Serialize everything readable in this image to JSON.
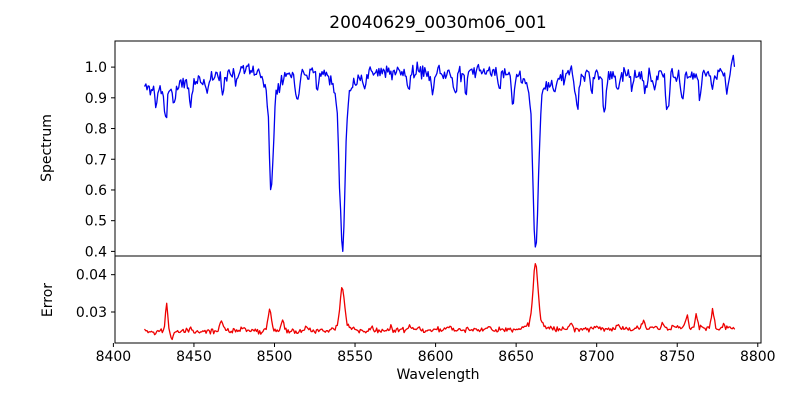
{
  "chart_data": {
    "type": "line",
    "title": "20040629_0030m06_001",
    "xlabel": "Wavelength",
    "grid": false,
    "legend": "none",
    "background_color": "#ffffff",
    "axis_color": "#000000",
    "x_range": [
      8401,
      8802
    ],
    "x_ticks": [
      8400,
      8450,
      8500,
      8550,
      8600,
      8650,
      8700,
      8750,
      8800
    ],
    "data_x_range": [
      8419.5,
      8785.5
    ],
    "n_points": 540,
    "noise_seed": 11,
    "panels": [
      {
        "name": "spectrum",
        "ylabel": "Spectrum",
        "y_range": [
          0.385,
          1.085
        ],
        "y_ticks": [
          0.4,
          0.5,
          0.6,
          0.7,
          0.8,
          0.9,
          1.0
        ],
        "y_tick_decimals": 1,
        "line_color": "#0000ee",
        "noise_amp": 0.012,
        "baseline_points": [
          [
            8419,
            0.935
          ],
          [
            8428,
            0.925
          ],
          [
            8440,
            0.94
          ],
          [
            8452,
            0.955
          ],
          [
            8465,
            0.975
          ],
          [
            8478,
            0.995
          ],
          [
            8492,
            0.985
          ],
          [
            8505,
            0.975
          ],
          [
            8520,
            0.985
          ],
          [
            8535,
            0.99
          ],
          [
            8550,
            0.98
          ],
          [
            8562,
            0.99
          ],
          [
            8575,
            0.98
          ],
          [
            8590,
            0.985
          ],
          [
            8605,
            0.98
          ],
          [
            8625,
            0.985
          ],
          [
            8645,
            0.982
          ],
          [
            8660,
            0.978
          ],
          [
            8672,
            0.97
          ],
          [
            8690,
            0.975
          ],
          [
            8705,
            0.975
          ],
          [
            8720,
            0.982
          ],
          [
            8734,
            0.975
          ],
          [
            8748,
            0.97
          ],
          [
            8760,
            0.975
          ],
          [
            8775,
            0.985
          ],
          [
            8785,
            0.99
          ]
        ],
        "features": [
          [
            8498.0,
            -0.33,
            1.2
          ],
          [
            8498.0,
            -0.055,
            4.0
          ],
          [
            8542.1,
            -0.5,
            1.6
          ],
          [
            8542.1,
            -0.075,
            5.5
          ],
          [
            8662.1,
            -0.49,
            1.6
          ],
          [
            8662.1,
            -0.07,
            5.5
          ],
          [
            8426.5,
            -0.05,
            0.7
          ],
          [
            8432.5,
            -0.105,
            0.8
          ],
          [
            8437.5,
            -0.07,
            0.7
          ],
          [
            8448,
            -0.07,
            0.9
          ],
          [
            8458,
            -0.045,
            0.8
          ],
          [
            8468,
            -0.075,
            0.9
          ],
          [
            8476,
            -0.05,
            0.7
          ],
          [
            8514,
            -0.095,
            1.0
          ],
          [
            8527,
            -0.055,
            0.8
          ],
          [
            8556,
            -0.06,
            0.9
          ],
          [
            8583,
            -0.055,
            0.9
          ],
          [
            8598,
            -0.05,
            0.8
          ],
          [
            8612,
            -0.08,
            1.0
          ],
          [
            8619,
            -0.07,
            0.9
          ],
          [
            8640,
            -0.05,
            0.8
          ],
          [
            8648,
            -0.08,
            0.9
          ],
          [
            8674,
            -0.055,
            0.9
          ],
          [
            8688,
            -0.1,
            1.1
          ],
          [
            8697,
            -0.05,
            0.8
          ],
          [
            8705,
            -0.115,
            1.0
          ],
          [
            8713,
            -0.06,
            0.9
          ],
          [
            8722,
            -0.055,
            0.8
          ],
          [
            8730,
            -0.07,
            0.9
          ],
          [
            8736,
            -0.05,
            0.8
          ],
          [
            8744,
            -0.11,
            1.0
          ],
          [
            8753,
            -0.085,
            0.9
          ],
          [
            8764,
            -0.075,
            0.9
          ],
          [
            8772,
            -0.05,
            0.8
          ],
          [
            8781,
            -0.06,
            0.9
          ],
          [
            8785,
            0.045,
            0.5
          ]
        ]
      },
      {
        "name": "error",
        "ylabel": "Error",
        "y_range": [
          0.0217,
          0.045
        ],
        "y_ticks": [
          0.03,
          0.04
        ],
        "y_tick_decimals": 2,
        "line_color": "#ee0000",
        "noise_amp": 0.00035,
        "baseline_points": [
          [
            8419,
            0.0247
          ],
          [
            8450,
            0.0248
          ],
          [
            8485,
            0.025
          ],
          [
            8520,
            0.0248
          ],
          [
            8555,
            0.025
          ],
          [
            8590,
            0.0252
          ],
          [
            8625,
            0.0252
          ],
          [
            8660,
            0.0253
          ],
          [
            8695,
            0.0255
          ],
          [
            8730,
            0.0256
          ],
          [
            8765,
            0.0258
          ],
          [
            8785,
            0.0256
          ]
        ],
        "features": [
          [
            8433,
            0.0075,
            0.7
          ],
          [
            8436.5,
            -0.0014,
            1.0
          ],
          [
            8448,
            0.001,
            0.8
          ],
          [
            8467,
            0.0032,
            0.9
          ],
          [
            8480,
            0.0007,
            0.8
          ],
          [
            8497,
            0.0058,
            1.1
          ],
          [
            8505,
            0.0028,
            0.9
          ],
          [
            8520,
            0.0013,
            0.8
          ],
          [
            8542.1,
            0.01,
            1.4
          ],
          [
            8542.1,
            0.0013,
            5.0
          ],
          [
            8560,
            0.0008,
            0.9
          ],
          [
            8572,
            0.0008,
            0.9
          ],
          [
            8584,
            0.0009,
            0.9
          ],
          [
            8608,
            0.0012,
            1.0
          ],
          [
            8633,
            0.0008,
            0.8
          ],
          [
            8662.1,
            0.016,
            1.5
          ],
          [
            8662.1,
            0.0018,
            5.0
          ],
          [
            8684,
            0.0021,
            0.9
          ],
          [
            8700,
            0.0008,
            0.9
          ],
          [
            8713,
            0.0009,
            0.8
          ],
          [
            8729,
            0.0021,
            0.8
          ],
          [
            8741,
            0.0012,
            0.8
          ],
          [
            8756,
            0.0034,
            0.8
          ],
          [
            8762,
            0.0032,
            0.8
          ],
          [
            8772,
            0.0046,
            0.9
          ],
          [
            8779,
            0.001,
            0.7
          ]
        ]
      }
    ]
  }
}
